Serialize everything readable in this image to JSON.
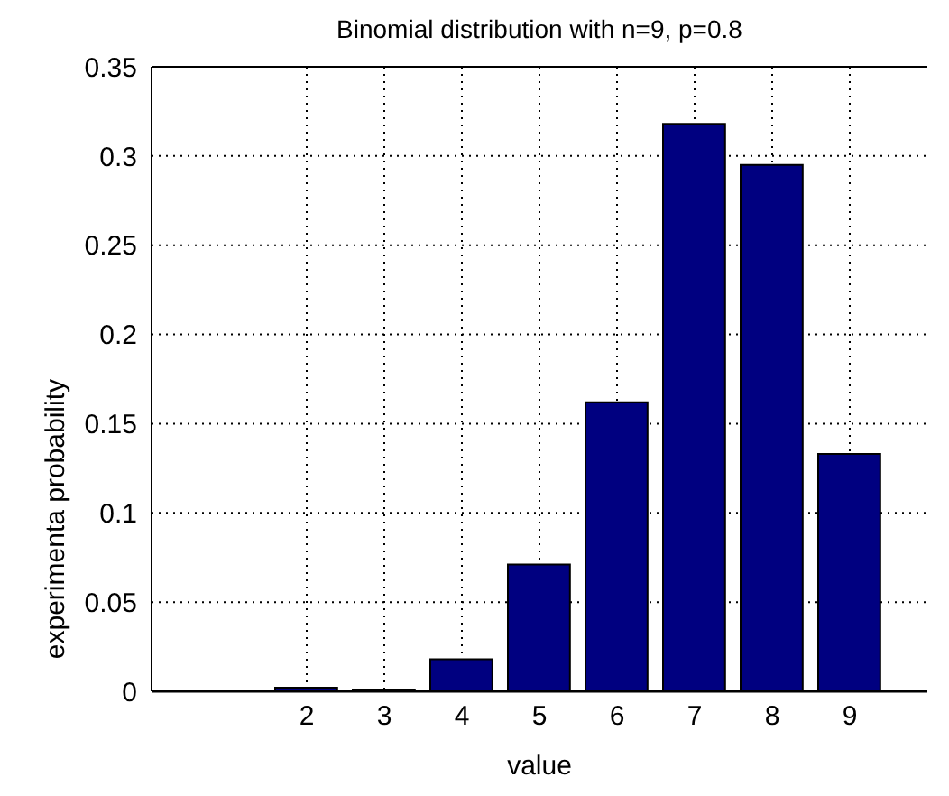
{
  "chart_data": {
    "type": "bar",
    "title": "Binomial distribution with n=9, p=0.8",
    "xlabel": "value",
    "ylabel": "experimenta probability",
    "x": [
      2,
      3,
      4,
      5,
      6,
      7,
      8,
      9
    ],
    "values": [
      0.002,
      0.001,
      0.018,
      0.071,
      0.162,
      0.318,
      0.295,
      0.133
    ],
    "color": "#000080",
    "xlim": [
      0,
      10
    ],
    "xticks": [
      2,
      3,
      4,
      5,
      6,
      7,
      8,
      9
    ],
    "ylim": [
      0,
      0.35
    ],
    "yticks": [
      0,
      0.05,
      0.1,
      0.15,
      0.2,
      0.25,
      0.3,
      0.35
    ],
    "grid": true
  }
}
